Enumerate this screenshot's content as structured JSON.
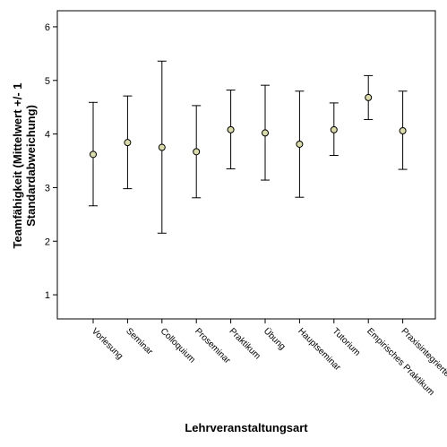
{
  "chart_data": {
    "type": "errorbar",
    "xlabel": "Lehrveranstaltungsart",
    "ylabel_line1": "Teamfähigkeit (Mittelwert +/- 1",
    "ylabel_line2": "Standardabweichung)",
    "ylim": [
      0.55,
      6.3
    ],
    "yticks": [
      "1",
      "2",
      "3",
      "4",
      "5",
      "6"
    ],
    "grid": false,
    "legend": "none",
    "marker_color": "#dcdca8",
    "categories": [
      "Vorlesung",
      "Seminar",
      "Colloquium",
      "Proseminar",
      "Praktikum",
      "Übung",
      "Hauptseminar",
      "Tutorium",
      "Empirisches Praktikum",
      "Praxisintegrierte"
    ],
    "means": [
      3.62,
      3.84,
      3.75,
      3.67,
      4.08,
      4.02,
      3.81,
      4.08,
      4.68,
      4.06
    ],
    "lower": [
      2.66,
      2.98,
      2.15,
      2.81,
      3.35,
      3.14,
      2.82,
      3.6,
      4.27,
      3.34
    ],
    "upper": [
      4.59,
      4.71,
      5.36,
      4.53,
      4.82,
      4.91,
      4.8,
      4.58,
      5.09,
      4.8
    ]
  }
}
